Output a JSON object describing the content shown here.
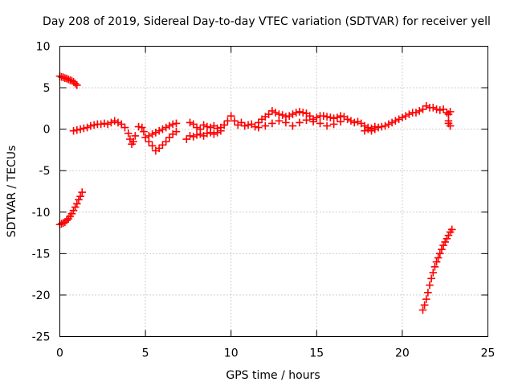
{
  "chart_data": {
    "type": "scatter",
    "title": "Day 208 of 2019, Sidereal Day-to-day VTEC variation (SDTVAR) for receiver yell",
    "xlabel": "GPS time / hours",
    "ylabel": "SDTVAR / TECUs",
    "xlim": [
      0,
      25
    ],
    "ylim": [
      -25,
      10
    ],
    "xticks": [
      0,
      5,
      10,
      15,
      20,
      25
    ],
    "yticks": [
      -25,
      -20,
      -15,
      -10,
      -5,
      0,
      5,
      10
    ],
    "xtick_labels": [
      "0",
      "5",
      "10",
      "15",
      "20",
      "25"
    ],
    "ytick_labels": [
      "-25",
      "-20",
      "-15",
      "-10",
      "-5",
      "0",
      "5",
      "10"
    ],
    "grid": true,
    "marker": "plus",
    "color": "#ff0000",
    "series": [
      {
        "values": [
          [
            0.0,
            6.4
          ],
          [
            0.1,
            6.3
          ],
          [
            0.2,
            6.25
          ],
          [
            0.3,
            6.15
          ],
          [
            0.4,
            6.1
          ],
          [
            0.5,
            6.0
          ],
          [
            0.6,
            5.9
          ],
          [
            0.7,
            5.85
          ],
          [
            0.8,
            5.7
          ],
          [
            0.9,
            5.5
          ],
          [
            1.0,
            5.3
          ],
          [
            0.0,
            -11.5
          ],
          [
            0.1,
            -11.4
          ],
          [
            0.2,
            -11.3
          ],
          [
            0.3,
            -11.2
          ],
          [
            0.4,
            -11.0
          ],
          [
            0.5,
            -10.8
          ],
          [
            0.6,
            -10.5
          ],
          [
            0.7,
            -10.2
          ],
          [
            0.8,
            -9.8
          ],
          [
            0.9,
            -9.4
          ],
          [
            1.0,
            -9.0
          ],
          [
            1.1,
            -8.5
          ],
          [
            1.2,
            -8.1
          ],
          [
            1.3,
            -7.6
          ],
          [
            0.8,
            -0.2
          ],
          [
            1.0,
            -0.1
          ],
          [
            1.2,
            0.0
          ],
          [
            1.4,
            0.1
          ],
          [
            1.6,
            0.2
          ],
          [
            1.8,
            0.4
          ],
          [
            2.0,
            0.5
          ],
          [
            2.2,
            0.6
          ],
          [
            2.4,
            0.6
          ],
          [
            2.6,
            0.7
          ],
          [
            2.8,
            0.6
          ],
          [
            3.0,
            0.8
          ],
          [
            3.2,
            1.0
          ],
          [
            3.4,
            0.8
          ],
          [
            3.6,
            0.6
          ],
          [
            3.8,
            0.2
          ],
          [
            4.0,
            -0.5
          ],
          [
            4.1,
            -1.2
          ],
          [
            4.2,
            -1.8
          ],
          [
            4.3,
            -1.5
          ],
          [
            4.4,
            -0.8
          ],
          [
            4.6,
            0.3
          ],
          [
            4.8,
            0.2
          ],
          [
            4.9,
            -0.3
          ],
          [
            5.0,
            -1.0
          ],
          [
            5.2,
            -1.5
          ],
          [
            5.4,
            -2.0
          ],
          [
            5.6,
            -2.6
          ],
          [
            5.8,
            -2.3
          ],
          [
            6.0,
            -1.9
          ],
          [
            6.2,
            -1.5
          ],
          [
            6.4,
            -1.0
          ],
          [
            6.6,
            -0.6
          ],
          [
            6.8,
            -0.3
          ],
          [
            5.2,
            -0.8
          ],
          [
            5.4,
            -0.6
          ],
          [
            5.6,
            -0.4
          ],
          [
            5.8,
            -0.2
          ],
          [
            6.0,
            0.0
          ],
          [
            6.2,
            0.2
          ],
          [
            6.4,
            0.4
          ],
          [
            6.6,
            0.6
          ],
          [
            6.8,
            0.7
          ],
          [
            7.4,
            -1.2
          ],
          [
            7.6,
            -0.8
          ],
          [
            7.8,
            -0.9
          ],
          [
            8.0,
            -0.7
          ],
          [
            8.2,
            -0.6
          ],
          [
            8.4,
            -0.8
          ],
          [
            8.6,
            -0.5
          ],
          [
            8.8,
            -0.4
          ],
          [
            9.0,
            -0.6
          ],
          [
            9.2,
            -0.4
          ],
          [
            9.4,
            -0.2
          ],
          [
            7.6,
            0.8
          ],
          [
            7.8,
            0.6
          ],
          [
            8.0,
            0.2
          ],
          [
            8.2,
            0.0
          ],
          [
            8.4,
            0.5
          ],
          [
            8.6,
            0.3
          ],
          [
            8.8,
            0.2
          ],
          [
            9.0,
            0.4
          ],
          [
            9.2,
            0.1
          ],
          [
            9.4,
            0.2
          ],
          [
            9.6,
            0.5
          ],
          [
            9.8,
            1.0
          ],
          [
            10.0,
            1.6
          ],
          [
            10.2,
            1.0
          ],
          [
            10.4,
            0.5
          ],
          [
            10.6,
            0.8
          ],
          [
            10.8,
            0.4
          ],
          [
            11.0,
            0.5
          ],
          [
            11.2,
            0.6
          ],
          [
            11.4,
            0.3
          ],
          [
            11.6,
            0.8
          ],
          [
            11.8,
            1.2
          ],
          [
            12.0,
            1.5
          ],
          [
            12.2,
            1.8
          ],
          [
            12.4,
            2.2
          ],
          [
            12.6,
            2.0
          ],
          [
            12.8,
            1.8
          ],
          [
            13.0,
            1.7
          ],
          [
            13.2,
            1.5
          ],
          [
            13.4,
            1.6
          ],
          [
            13.6,
            1.8
          ],
          [
            13.8,
            2.0
          ],
          [
            14.0,
            2.1
          ],
          [
            14.2,
            2.0
          ],
          [
            14.4,
            1.9
          ],
          [
            14.6,
            1.6
          ],
          [
            11.6,
            0.2
          ],
          [
            12.0,
            0.4
          ],
          [
            12.4,
            0.7
          ],
          [
            12.8,
            1.0
          ],
          [
            13.2,
            0.8
          ],
          [
            13.6,
            0.4
          ],
          [
            14.0,
            0.8
          ],
          [
            14.4,
            1.1
          ],
          [
            14.8,
            0.9
          ],
          [
            15.2,
            0.7
          ],
          [
            15.6,
            0.4
          ],
          [
            16.0,
            0.6
          ],
          [
            16.4,
            0.9
          ],
          [
            14.8,
            1.2
          ],
          [
            15.0,
            1.4
          ],
          [
            15.2,
            1.6
          ],
          [
            15.4,
            1.6
          ],
          [
            15.6,
            1.5
          ],
          [
            15.8,
            1.4
          ],
          [
            16.0,
            1.3
          ],
          [
            16.2,
            1.4
          ],
          [
            16.4,
            1.6
          ],
          [
            16.6,
            1.5
          ],
          [
            16.8,
            1.2
          ],
          [
            17.0,
            1.0
          ],
          [
            17.2,
            0.8
          ],
          [
            17.4,
            0.9
          ],
          [
            17.6,
            0.7
          ],
          [
            17.8,
            0.4
          ],
          [
            18.0,
            0.2
          ],
          [
            18.2,
            0.1
          ],
          [
            18.4,
            0.3
          ],
          [
            18.6,
            0.2
          ],
          [
            18.8,
            0.3
          ],
          [
            19.0,
            0.4
          ],
          [
            19.2,
            0.6
          ],
          [
            19.4,
            0.8
          ],
          [
            19.6,
            1.0
          ],
          [
            19.8,
            1.2
          ],
          [
            20.0,
            1.4
          ],
          [
            20.2,
            1.6
          ],
          [
            20.4,
            1.8
          ],
          [
            20.6,
            2.0
          ],
          [
            20.8,
            2.0
          ],
          [
            21.0,
            2.2
          ],
          [
            21.2,
            2.4
          ],
          [
            21.4,
            2.8
          ],
          [
            21.6,
            2.6
          ],
          [
            21.8,
            2.6
          ],
          [
            22.0,
            2.4
          ],
          [
            22.2,
            2.3
          ],
          [
            22.4,
            2.4
          ],
          [
            17.8,
            -0.2
          ],
          [
            18.0,
            0.0
          ],
          [
            18.2,
            -0.2
          ],
          [
            18.4,
            0.0
          ],
          [
            22.6,
            2.0
          ],
          [
            22.7,
            1.8
          ],
          [
            22.8,
            2.1
          ],
          [
            22.7,
            1.0
          ],
          [
            22.7,
            0.7
          ],
          [
            22.8,
            0.4
          ],
          [
            21.2,
            -21.8
          ],
          [
            21.3,
            -21.2
          ],
          [
            21.4,
            -20.5
          ],
          [
            21.5,
            -19.7
          ],
          [
            21.6,
            -18.8
          ],
          [
            21.7,
            -18.0
          ],
          [
            21.8,
            -17.3
          ],
          [
            21.9,
            -16.6
          ],
          [
            22.0,
            -16.0
          ],
          [
            22.1,
            -15.5
          ],
          [
            22.2,
            -15.0
          ],
          [
            22.3,
            -14.5
          ],
          [
            22.4,
            -14.0
          ],
          [
            22.5,
            -13.6
          ],
          [
            22.6,
            -13.2
          ],
          [
            22.7,
            -12.8
          ],
          [
            22.8,
            -12.4
          ],
          [
            22.9,
            -12.1
          ]
        ]
      }
    ]
  }
}
